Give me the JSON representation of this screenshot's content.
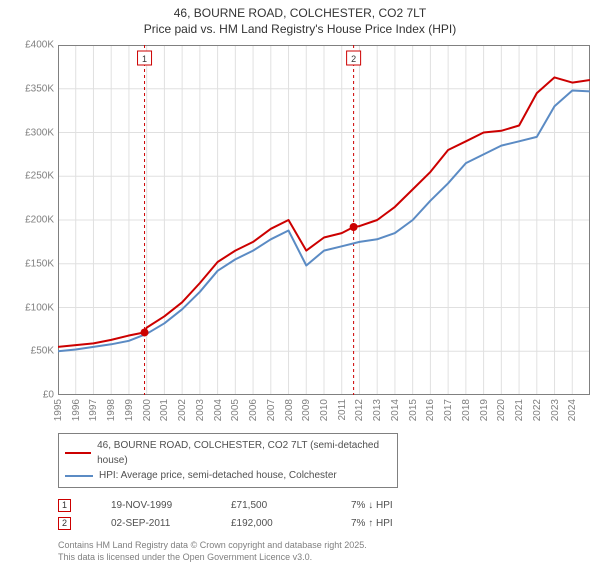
{
  "title_line1": "46, BOURNE ROAD, COLCHESTER, CO2 7LT",
  "title_line2": "Price paid vs. HM Land Registry's House Price Index (HPI)",
  "chart": {
    "type": "line",
    "background_color": "#ffffff",
    "grid_color": "#e0e0e0",
    "border_color": "#808080",
    "ylim": [
      0,
      400000
    ],
    "ytick_step": 50000,
    "y_ticks": [
      "£0",
      "£50K",
      "£100K",
      "£150K",
      "£200K",
      "£250K",
      "£300K",
      "£350K",
      "£400K"
    ],
    "x_years": [
      1995,
      1996,
      1997,
      1998,
      1999,
      2000,
      2001,
      2002,
      2003,
      2004,
      2005,
      2006,
      2007,
      2008,
      2009,
      2010,
      2011,
      2012,
      2013,
      2014,
      2015,
      2016,
      2017,
      2018,
      2019,
      2020,
      2021,
      2022,
      2023,
      2024
    ],
    "xlim": [
      1995,
      2025
    ],
    "title_fontsize": 12,
    "label_fontsize": 10,
    "series": [
      {
        "name": "46, BOURNE ROAD, COLCHESTER, CO2 7LT (semi-detached house)",
        "color": "#cc0000",
        "line_width": 2,
        "data_x": [
          1995,
          1996,
          1997,
          1998,
          1999,
          1999.88,
          2000,
          2001,
          2002,
          2003,
          2004,
          2005,
          2006,
          2007,
          2008,
          2009,
          2010,
          2011,
          2011.67,
          2012,
          2013,
          2014,
          2015,
          2016,
          2017,
          2018,
          2019,
          2020,
          2021,
          2022,
          2023,
          2024,
          2025
        ],
        "data_y": [
          55000,
          57000,
          59000,
          63000,
          68000,
          71500,
          77000,
          90000,
          106000,
          128000,
          152000,
          165000,
          175000,
          190000,
          200000,
          165000,
          180000,
          185000,
          192000,
          193000,
          200000,
          215000,
          235000,
          255000,
          280000,
          290000,
          300000,
          302000,
          308000,
          345000,
          363000,
          357000,
          360000
        ]
      },
      {
        "name": "HPI: Average price, semi-detached house, Colchester",
        "color": "#5b8bc4",
        "line_width": 2,
        "data_x": [
          1995,
          1996,
          1997,
          1998,
          1999,
          2000,
          2001,
          2002,
          2003,
          2004,
          2005,
          2006,
          2007,
          2008,
          2009,
          2010,
          2011,
          2012,
          2013,
          2014,
          2015,
          2016,
          2017,
          2018,
          2019,
          2020,
          2021,
          2022,
          2023,
          2024,
          2025
        ],
        "data_y": [
          50000,
          52000,
          55000,
          58000,
          62000,
          70000,
          82000,
          98000,
          118000,
          142000,
          155000,
          165000,
          178000,
          188000,
          148000,
          165000,
          170000,
          175000,
          178000,
          185000,
          200000,
          222000,
          242000,
          265000,
          275000,
          285000,
          290000,
          295000,
          330000,
          348000,
          347000
        ]
      }
    ],
    "sale_markers": [
      {
        "num": "1",
        "x": 1999.88,
        "y": 71500
      },
      {
        "num": "2",
        "x": 2011.67,
        "y": 192000
      }
    ],
    "marker_line_color": "#cc0000",
    "marker_line_dash": "3,3"
  },
  "legend": {
    "items": [
      {
        "color": "#cc0000",
        "label": "46, BOURNE ROAD, COLCHESTER, CO2 7LT (semi-detached house)"
      },
      {
        "color": "#5b8bc4",
        "label": "HPI: Average price, semi-detached house, Colchester"
      }
    ]
  },
  "marker_table": [
    {
      "num": "1",
      "date": "19-NOV-1999",
      "price": "£71,500",
      "diff": "7% ↓ HPI"
    },
    {
      "num": "2",
      "date": "02-SEP-2011",
      "price": "£192,000",
      "diff": "7% ↑ HPI"
    }
  ],
  "footer_line1": "Contains HM Land Registry data © Crown copyright and database right 2025.",
  "footer_line2": "This data is licensed under the Open Government Licence v3.0."
}
